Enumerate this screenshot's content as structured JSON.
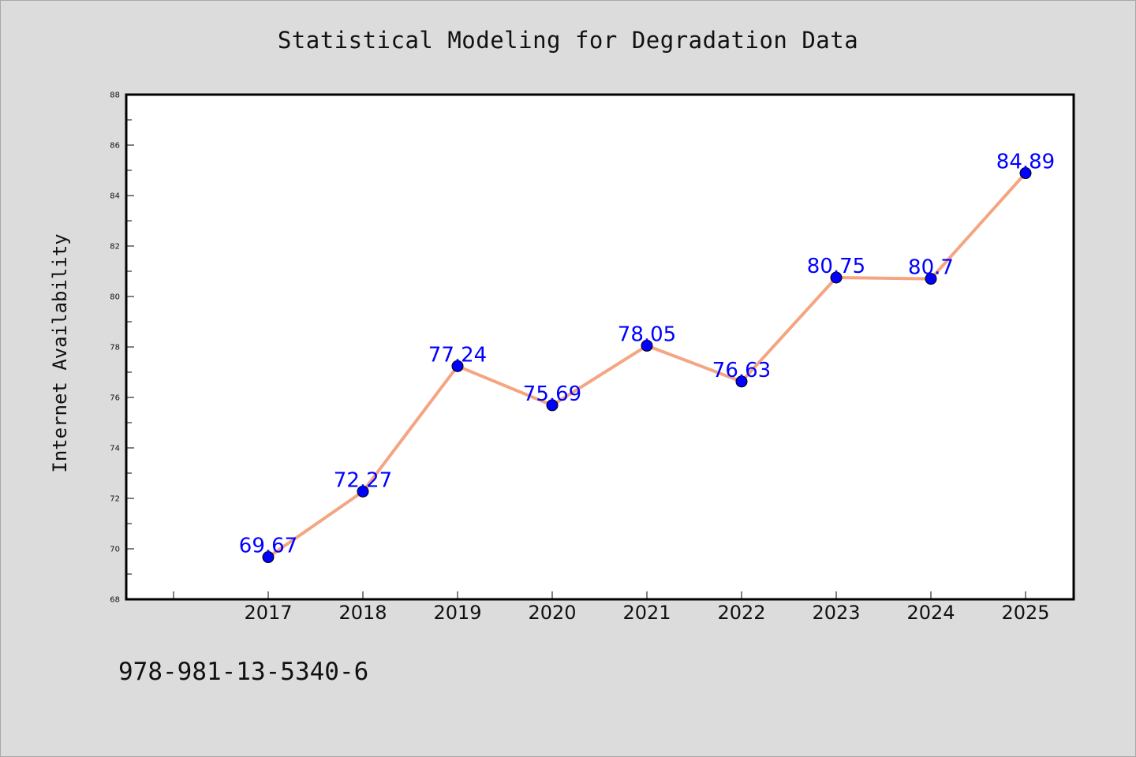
{
  "chart_data": {
    "type": "line",
    "title": "Statistical Modeling for Degradation Data",
    "xlabel": "",
    "ylabel": "Internet Availability",
    "categories": [
      "2017",
      "2018",
      "2019",
      "2020",
      "2021",
      "2022",
      "2023",
      "2024",
      "2025"
    ],
    "series": [
      {
        "values": [
          69.67,
          72.27,
          77.24,
          75.69,
          78.05,
          76.63,
          80.75,
          80.7,
          84.89
        ],
        "labels": [
          "69.67",
          "72.27",
          "77.24",
          "75.69",
          "78.05",
          "76.63",
          "80.75",
          "80.7",
          "84.89"
        ]
      }
    ],
    "ylim": [
      68,
      88
    ],
    "yticks": [
      "68",
      "70",
      "72",
      "74",
      "76",
      "78",
      "80",
      "82",
      "84",
      "86",
      "88"
    ],
    "grid": false,
    "legend": "none"
  },
  "colors": {
    "line": "#f4a582",
    "marker": "#0000ff",
    "label": "#0000ff",
    "background": "#dcdcdc",
    "plot_area": "#ffffff"
  },
  "footer": {
    "code": "978-981-13-5340-6"
  }
}
